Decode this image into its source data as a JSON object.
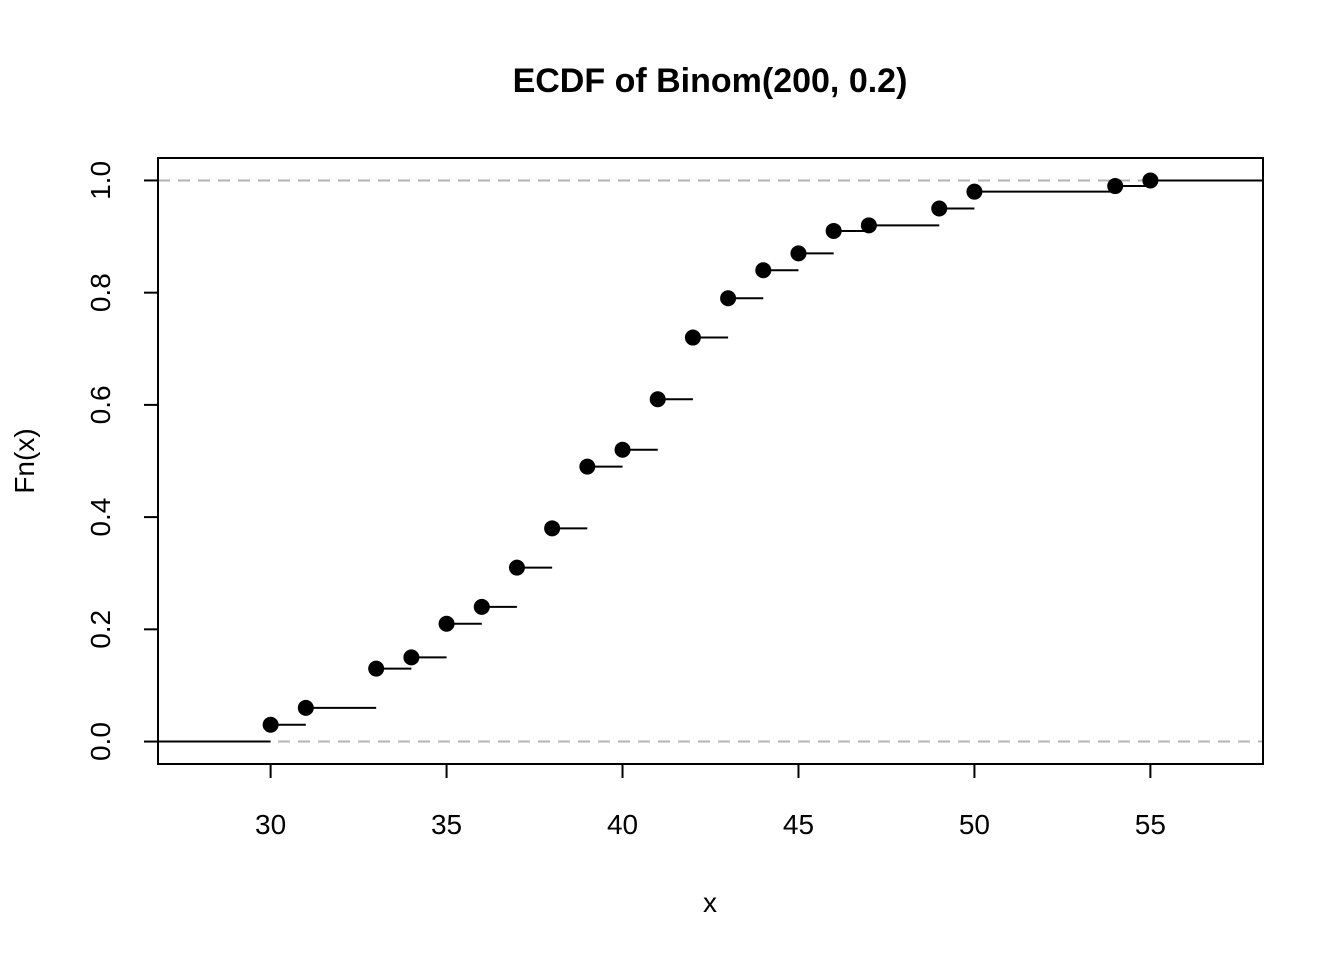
{
  "chart_data": {
    "type": "scatter",
    "subtype": "ecdf-step",
    "title": "ECDF of Binom(200, 0.2)",
    "xlabel": "x",
    "ylabel": "Fn(x)",
    "xlim": [
      26.8,
      58.2
    ],
    "ylim": [
      -0.04,
      1.04
    ],
    "xticks": [
      30,
      35,
      40,
      45,
      50,
      55
    ],
    "yticks": [
      0.0,
      0.2,
      0.4,
      0.6,
      0.8,
      1.0
    ],
    "xtick_labels": [
      "30",
      "35",
      "40",
      "45",
      "50",
      "55"
    ],
    "ytick_labels": [
      "0.0",
      "0.2",
      "0.4",
      "0.6",
      "0.8",
      "1.0"
    ],
    "reference_lines": [
      0,
      1
    ],
    "grid": false,
    "legend": "none",
    "x": [
      30,
      31,
      33,
      34,
      35,
      36,
      37,
      38,
      39,
      40,
      41,
      42,
      43,
      44,
      45,
      46,
      47,
      49,
      50,
      54,
      55
    ],
    "y": [
      0.03,
      0.06,
      0.13,
      0.15,
      0.21,
      0.24,
      0.31,
      0.38,
      0.49,
      0.52,
      0.61,
      0.72,
      0.79,
      0.84,
      0.87,
      0.91,
      0.92,
      0.95,
      0.98,
      0.99,
      1.0
    ],
    "colors": {
      "points": "#000000",
      "reference": "#b3b3b3"
    }
  }
}
